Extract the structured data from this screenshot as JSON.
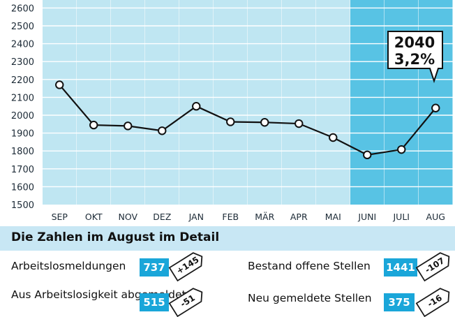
{
  "chart_data": {
    "type": "line",
    "categories": [
      "SEP",
      "OKT",
      "NOV",
      "DEZ",
      "JAN",
      "FEB",
      "MÄR",
      "APR",
      "MAI",
      "JUNI",
      "JULI",
      "AUG"
    ],
    "values": [
      2170,
      1945,
      1940,
      1913,
      2050,
      1963,
      1960,
      1953,
      1875,
      1778,
      1808,
      2040
    ],
    "highlight_categories": [
      "JUNI",
      "JULI",
      "AUG"
    ],
    "yticks": [
      1500,
      1600,
      1700,
      1800,
      1900,
      2000,
      2100,
      2200,
      2300,
      2400,
      2500,
      2600
    ],
    "ylim": [
      1500,
      2650
    ],
    "grid": true,
    "annotation": {
      "category": "AUG",
      "value": "2040",
      "percent": "3,2%"
    },
    "colors": {
      "column": "#bfe6f2",
      "highlight": "#58c3e4",
      "gridline": "#ffffff",
      "line": "#111111",
      "marker_fill": "#ffffff"
    }
  },
  "details": {
    "title": "Die Zahlen im August im Detail",
    "rows": [
      {
        "label": "Arbeitslosmeldungen",
        "value": "737",
        "change": "+145"
      },
      {
        "label": "Aus Arbeitslosigkeit abgemeldet",
        "value": "515",
        "change": "-51"
      },
      {
        "label": "Bestand offene Stellen",
        "value": "1441",
        "change": "-107"
      },
      {
        "label": "Neu gemeldete Stellen",
        "value": "375",
        "change": "-16"
      }
    ],
    "colors": {
      "band": "#c8e7f4",
      "value_box": "#1aa6d9",
      "tag_fill": "#ffffff",
      "tag_border": "#1a1a1a"
    }
  }
}
